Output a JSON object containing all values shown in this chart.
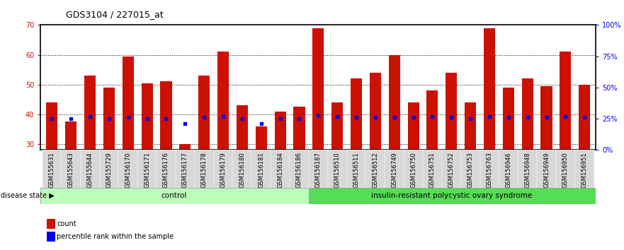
{
  "title": "GDS3104 / 227015_at",
  "samples": [
    "GSM155631",
    "GSM155643",
    "GSM155644",
    "GSM155729",
    "GSM156170",
    "GSM156171",
    "GSM156176",
    "GSM156177",
    "GSM156178",
    "GSM156179",
    "GSM156180",
    "GSM156181",
    "GSM156184",
    "GSM156186",
    "GSM156187",
    "GSM156510",
    "GSM156511",
    "GSM156512",
    "GSM156749",
    "GSM156750",
    "GSM156751",
    "GSM156752",
    "GSM156753",
    "GSM156763",
    "GSM156946",
    "GSM156948",
    "GSM156949",
    "GSM156950",
    "GSM156951"
  ],
  "counts": [
    44,
    37.5,
    53,
    49,
    59.5,
    50.5,
    51,
    30,
    53,
    61,
    43,
    36,
    41,
    42.5,
    69,
    44,
    52,
    54,
    60,
    44,
    48,
    54,
    44,
    69,
    49,
    52,
    49.5,
    61,
    50
  ],
  "percentile_ranks_pct": [
    25,
    25,
    27,
    25,
    26,
    25,
    25,
    21,
    26,
    27,
    25,
    21,
    25,
    25,
    28,
    27,
    26,
    26,
    26,
    26,
    27,
    26,
    25,
    27,
    26,
    26,
    26,
    27,
    26
  ],
  "control_count": 14,
  "ylim_left": [
    28,
    70
  ],
  "ylim_right": [
    0,
    100
  ],
  "yticks_left": [
    30,
    40,
    50,
    60,
    70
  ],
  "yticks_right": [
    0,
    25,
    50,
    75,
    100
  ],
  "bar_color": "#cc1100",
  "dot_color": "#0000ee",
  "control_color": "#bbffbb",
  "disease_color": "#55dd55",
  "bg_color": "#ffffff",
  "title_fontsize": 9,
  "tick_fontsize": 6,
  "axis_tick_fontsize": 7,
  "label_fontsize": 7,
  "control_label": "control",
  "disease_label": "insulin-resistant polycystic ovary syndrome",
  "disease_state_label": "disease state",
  "legend_count": "count",
  "legend_percentile": "percentile rank within the sample"
}
